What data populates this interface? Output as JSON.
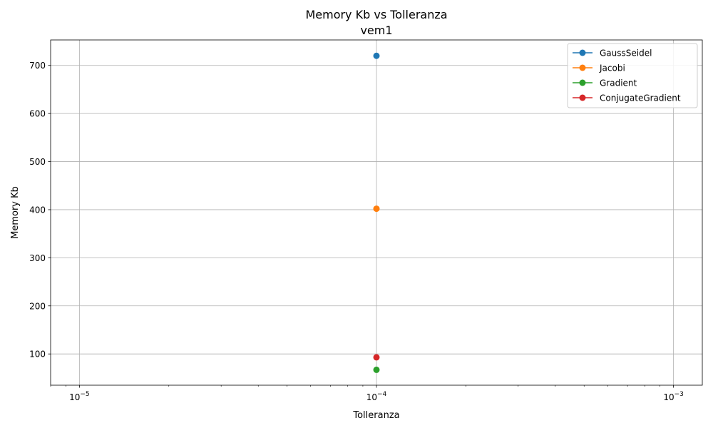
{
  "chart_data": {
    "type": "line",
    "title": "Memory Kb vs Tolleranza",
    "subtitle": "vem1",
    "xlabel": "Tolleranza",
    "ylabel": "Memory Kb",
    "xscale": "log",
    "xlim": [
      8e-06,
      0.00125
    ],
    "ylim": [
      35,
      753
    ],
    "x_major_ticks": [
      {
        "value": 1e-05,
        "base": "10",
        "exp": "−5"
      },
      {
        "value": 0.0001,
        "base": "10",
        "exp": "−4"
      },
      {
        "value": 0.001,
        "base": "10",
        "exp": "−3"
      }
    ],
    "y_ticks": [
      100,
      200,
      300,
      400,
      500,
      600,
      700
    ],
    "grid": true,
    "legend_position": "top-right",
    "series": [
      {
        "name": "GaussSeidel",
        "color": "#1f77b4",
        "x": [
          0.0001
        ],
        "y": [
          720
        ]
      },
      {
        "name": "Jacobi",
        "color": "#ff7f0e",
        "x": [
          0.0001
        ],
        "y": [
          402
        ]
      },
      {
        "name": "Gradient",
        "color": "#2ca02c",
        "x": [
          0.0001
        ],
        "y": [
          67
        ]
      },
      {
        "name": "ConjugateGradient",
        "color": "#d62728",
        "x": [
          0.0001
        ],
        "y": [
          93
        ]
      }
    ]
  }
}
